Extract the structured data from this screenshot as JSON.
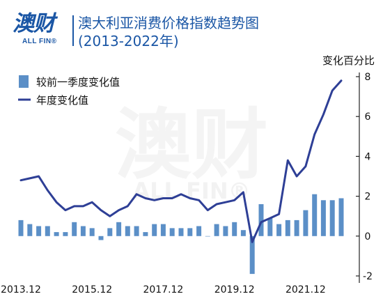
{
  "header": {
    "logo_cn": "澳财",
    "logo_en": "ALL FIN®",
    "title_line1": "澳大利亚消费价格指数趋势图",
    "title_line2": "(2013-2022年)"
  },
  "watermark": {
    "cn": "澳财",
    "en": "ALL FIN®"
  },
  "colors": {
    "bar": "#5b8fc7",
    "line": "#2e3f96",
    "brand": "#1a56a5"
  },
  "chart_data": {
    "type": "bar+line",
    "title": "澳大利亚消费价格指数趋势图 (2013-2022年)",
    "ylabel": "变化百分比",
    "ylim": [
      -2,
      8
    ],
    "yticks": [
      "8",
      "6",
      "4",
      "2",
      "0",
      "-2"
    ],
    "yticks_values": [
      8,
      6,
      4,
      2,
      0,
      -2
    ],
    "legend_placement": "top-left",
    "x_tick_labels": [
      {
        "label": "2013.12",
        "index": 0
      },
      {
        "label": "2015.12",
        "index": 8
      },
      {
        "label": "2017.12",
        "index": 16
      },
      {
        "label": "2019.12",
        "index": 24
      },
      {
        "label": "2021.12",
        "index": 32
      }
    ],
    "quarters": [
      "2013.12",
      "2014.03",
      "2014.06",
      "2014.09",
      "2014.12",
      "2015.03",
      "2015.06",
      "2015.09",
      "2015.12",
      "2016.03",
      "2016.06",
      "2016.09",
      "2016.12",
      "2017.03",
      "2017.06",
      "2017.09",
      "2017.12",
      "2018.03",
      "2018.06",
      "2018.09",
      "2018.12",
      "2019.03",
      "2019.06",
      "2019.09",
      "2019.12",
      "2020.03",
      "2020.06",
      "2020.09",
      "2020.12",
      "2021.03",
      "2021.06",
      "2021.09",
      "2021.12",
      "2022.03",
      "2022.06",
      "2022.09",
      "2022.12"
    ],
    "series": [
      {
        "name": "较前一季度变化值",
        "type": "bar",
        "values": [
          0.8,
          0.6,
          0.5,
          0.5,
          0.2,
          0.2,
          0.7,
          0.5,
          0.4,
          -0.2,
          0.4,
          0.7,
          0.5,
          0.5,
          0.2,
          0.6,
          0.6,
          0.4,
          0.4,
          0.4,
          0.5,
          0.0,
          0.6,
          0.5,
          0.7,
          0.3,
          -1.9,
          1.6,
          0.9,
          0.6,
          0.8,
          0.8,
          1.3,
          2.1,
          1.8,
          1.8,
          1.9
        ]
      },
      {
        "name": "年度变化值",
        "type": "line",
        "values": [
          2.8,
          2.9,
          3.0,
          2.3,
          1.7,
          1.3,
          1.5,
          1.5,
          1.7,
          1.3,
          1.0,
          1.3,
          1.5,
          2.1,
          1.9,
          1.8,
          1.9,
          1.9,
          2.1,
          1.9,
          1.8,
          1.3,
          1.6,
          1.7,
          1.8,
          2.2,
          -0.3,
          0.7,
          0.9,
          1.1,
          3.8,
          3.0,
          3.5,
          5.1,
          6.1,
          7.3,
          7.8
        ]
      }
    ]
  }
}
